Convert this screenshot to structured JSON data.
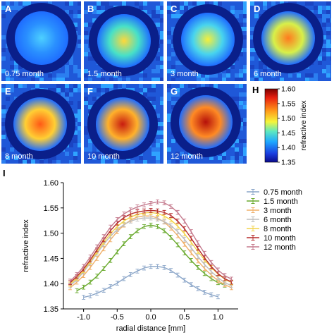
{
  "panels": [
    {
      "letter": "A",
      "label": "0.75 month",
      "core": "#4dd0ff",
      "mid": "#2a90ff"
    },
    {
      "letter": "B",
      "label": "1.5 month",
      "core": "#ffd83a",
      "mid": "#47e0c8"
    },
    {
      "letter": "C",
      "label": "3 month",
      "core": "#f6ef3a",
      "mid": "#48d4ee"
    },
    {
      "letter": "D",
      "label": "6 month",
      "core": "#ff7a1e",
      "mid": "#d7f04a"
    },
    {
      "letter": "E",
      "label": "8 month",
      "core": "#ff5a16",
      "mid": "#ffcf34"
    },
    {
      "letter": "F",
      "label": "10 month",
      "core": "#c81c10",
      "mid": "#ffb12b"
    },
    {
      "letter": "G",
      "label": "12 month",
      "core": "#b5100a",
      "mid": "#ff8a24"
    }
  ],
  "colorbar": {
    "letter": "H",
    "ticks": [
      "1.60",
      "1.55",
      "1.50",
      "1.45",
      "1.40",
      "1.35"
    ],
    "label": "refractive index",
    "min": 1.35,
    "max": 1.6
  },
  "chart_letter": "I",
  "chart_data": {
    "type": "line",
    "xlabel": "radial distance [mm]",
    "ylabel": "refractive index",
    "xlim": [
      -1.3,
      1.3
    ],
    "ylim": [
      1.35,
      1.6
    ],
    "xticks": [
      "-1.0",
      "-0.5",
      "0.0",
      "0.5",
      "1.0"
    ],
    "yticks": [
      "1.35",
      "1.40",
      "1.45",
      "1.50",
      "1.55",
      "1.60"
    ],
    "grid": false,
    "legend": "right",
    "series": [
      {
        "name": "0.75 month",
        "color": "#8aa5c8",
        "x": [
          -1.0,
          -0.9,
          -0.8,
          -0.7,
          -0.6,
          -0.5,
          -0.4,
          -0.3,
          -0.2,
          -0.1,
          0.0,
          0.1,
          0.2,
          0.3,
          0.4,
          0.5,
          0.6,
          0.7,
          0.8,
          0.9,
          1.0
        ],
        "values": [
          1.373,
          1.376,
          1.381,
          1.387,
          1.394,
          1.401,
          1.41,
          1.418,
          1.425,
          1.431,
          1.434,
          1.434,
          1.432,
          1.426,
          1.417,
          1.407,
          1.398,
          1.39,
          1.383,
          1.378,
          1.374
        ]
      },
      {
        "name": "1.5 month",
        "color": "#6aaa2e",
        "x": [
          -1.1,
          -1.0,
          -0.9,
          -0.8,
          -0.7,
          -0.6,
          -0.5,
          -0.4,
          -0.3,
          -0.2,
          -0.1,
          0.0,
          0.1,
          0.2,
          0.3,
          0.4,
          0.5,
          0.6,
          0.7,
          0.8,
          0.9,
          1.0,
          1.1
        ],
        "values": [
          1.386,
          1.393,
          1.403,
          1.415,
          1.43,
          1.446,
          1.463,
          1.479,
          1.493,
          1.505,
          1.513,
          1.516,
          1.513,
          1.505,
          1.492,
          1.477,
          1.461,
          1.446,
          1.432,
          1.42,
          1.41,
          1.402,
          1.397
        ]
      },
      {
        "name": "3 month",
        "color": "#f0b06a",
        "x": [
          -1.2,
          -1.1,
          -1.0,
          -0.9,
          -0.8,
          -0.7,
          -0.6,
          -0.5,
          -0.4,
          -0.3,
          -0.2,
          -0.1,
          0.0,
          0.1,
          0.2,
          0.3,
          0.4,
          0.5,
          0.6,
          0.7,
          0.8,
          0.9,
          1.0,
          1.1,
          1.2
        ],
        "values": [
          1.392,
          1.403,
          1.416,
          1.432,
          1.45,
          1.469,
          1.487,
          1.503,
          1.516,
          1.526,
          1.532,
          1.534,
          1.534,
          1.53,
          1.522,
          1.51,
          1.495,
          1.478,
          1.461,
          1.445,
          1.43,
          1.417,
          1.406,
          1.398,
          1.392
        ]
      },
      {
        "name": "6 month",
        "color": "#bdbdbd",
        "x": [
          -1.2,
          -1.1,
          -1.0,
          -0.9,
          -0.8,
          -0.7,
          -0.6,
          -0.5,
          -0.4,
          -0.3,
          -0.2,
          -0.1,
          0.0,
          0.1,
          0.2,
          0.3,
          0.4,
          0.5,
          0.6,
          0.7,
          0.8,
          0.9,
          1.0,
          1.1,
          1.2
        ],
        "values": [
          1.396,
          1.408,
          1.423,
          1.441,
          1.46,
          1.478,
          1.494,
          1.507,
          1.517,
          1.524,
          1.528,
          1.53,
          1.53,
          1.528,
          1.523,
          1.515,
          1.503,
          1.488,
          1.471,
          1.454,
          1.438,
          1.424,
          1.412,
          1.402,
          1.396
        ]
      },
      {
        "name": "8 month",
        "color": "#f2d34a",
        "x": [
          -1.2,
          -1.1,
          -1.0,
          -0.9,
          -0.8,
          -0.7,
          -0.6,
          -0.5,
          -0.4,
          -0.3,
          -0.2,
          -0.1,
          0.0,
          0.1,
          0.2,
          0.3,
          0.4,
          0.5,
          0.6,
          0.7,
          0.8,
          0.9,
          1.0,
          1.1,
          1.2
        ],
        "values": [
          1.399,
          1.411,
          1.426,
          1.444,
          1.463,
          1.482,
          1.499,
          1.513,
          1.524,
          1.532,
          1.537,
          1.54,
          1.541,
          1.539,
          1.534,
          1.526,
          1.514,
          1.499,
          1.482,
          1.464,
          1.447,
          1.432,
          1.419,
          1.409,
          1.402
        ]
      },
      {
        "name": "10 month",
        "color": "#b52a2a",
        "x": [
          -1.2,
          -1.1,
          -1.0,
          -0.9,
          -0.8,
          -0.7,
          -0.6,
          -0.5,
          -0.4,
          -0.3,
          -0.2,
          -0.1,
          0.0,
          0.1,
          0.2,
          0.3,
          0.4,
          0.5,
          0.6,
          0.7,
          0.8,
          0.9,
          1.0,
          1.1,
          1.2
        ],
        "values": [
          1.402,
          1.414,
          1.429,
          1.447,
          1.467,
          1.487,
          1.505,
          1.52,
          1.531,
          1.538,
          1.542,
          1.544,
          1.545,
          1.544,
          1.541,
          1.535,
          1.524,
          1.509,
          1.49,
          1.47,
          1.451,
          1.434,
          1.42,
          1.41,
          1.403
        ]
      },
      {
        "name": "12 month",
        "color": "#c57b8e",
        "x": [
          -1.2,
          -1.1,
          -1.0,
          -0.9,
          -0.8,
          -0.7,
          -0.6,
          -0.5,
          -0.4,
          -0.3,
          -0.2,
          -0.1,
          0.0,
          0.1,
          0.2,
          0.3,
          0.4,
          0.5,
          0.6,
          0.7,
          0.8,
          0.9,
          1.0,
          1.1,
          1.2
        ],
        "values": [
          1.405,
          1.418,
          1.434,
          1.453,
          1.473,
          1.493,
          1.512,
          1.527,
          1.538,
          1.546,
          1.552,
          1.556,
          1.559,
          1.562,
          1.56,
          1.553,
          1.541,
          1.524,
          1.503,
          1.481,
          1.46,
          1.442,
          1.427,
          1.416,
          1.409
        ]
      }
    ]
  }
}
